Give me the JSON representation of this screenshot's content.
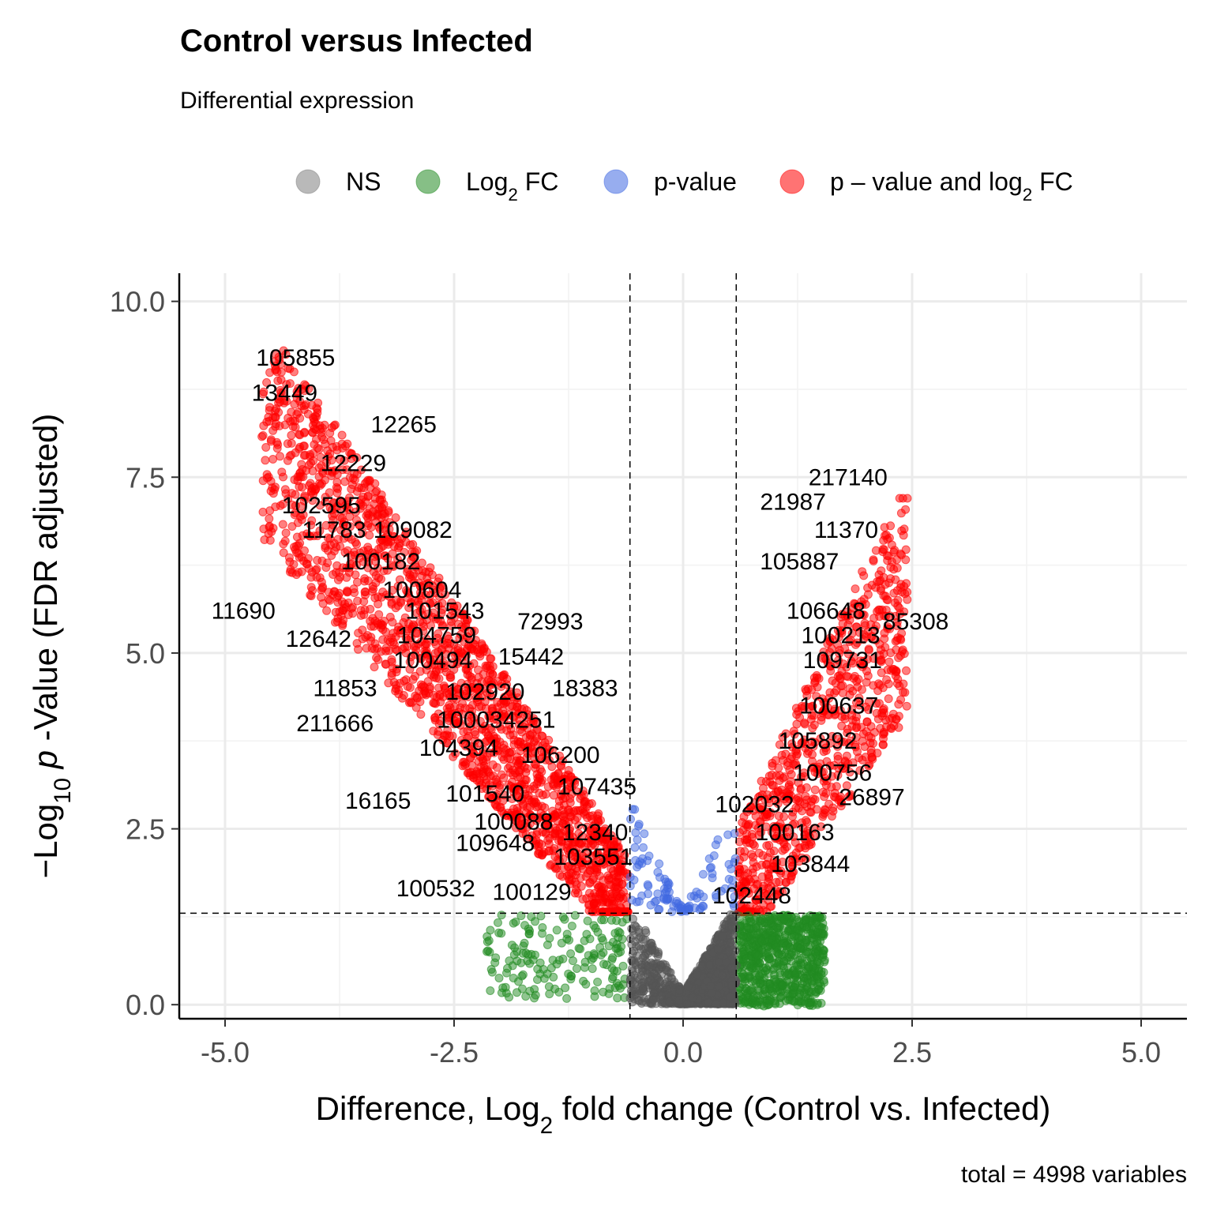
{
  "chart_data": {
    "type": "scatter",
    "title": "Control versus Infected",
    "subtitle": "Differential expression",
    "xlabel_parts": [
      "Difference, Log",
      "2",
      " fold change (Control vs. Infected)"
    ],
    "ylabel_parts": [
      "−Log",
      "10",
      " ",
      "p",
      " -Value (FDR adjusted)"
    ],
    "caption": "total = 4998 variables",
    "xlim": [
      -5.5,
      5.5
    ],
    "ylim": [
      -0.2,
      10.4
    ],
    "x_ticks": [
      -5.0,
      -2.5,
      0.0,
      2.5,
      5.0
    ],
    "x_tick_labels": [
      "-5.0",
      "-2.5",
      "0.0",
      "2.5",
      "5.0"
    ],
    "y_ticks": [
      0.0,
      2.5,
      5.0,
      7.5,
      10.0
    ],
    "y_tick_labels": [
      "0.0",
      "2.5",
      "5.0",
      "7.5",
      "10.0"
    ],
    "grid": true,
    "legend_position": "top",
    "cutoffs": {
      "log2fc": 0.58,
      "neg_log10_p": 1.3
    },
    "legend": [
      {
        "key": "ns",
        "parts": [
          "NS"
        ],
        "color": "#808080"
      },
      {
        "key": "fc",
        "parts": [
          "Log",
          "2",
          " FC"
        ],
        "color": "#228b22"
      },
      {
        "key": "p",
        "parts": [
          "p-value"
        ],
        "color": "#4169e1"
      },
      {
        "key": "both",
        "parts": [
          "p – value and log",
          "2",
          " FC"
        ],
        "color": "#ff0000"
      }
    ],
    "colors": {
      "ns": "#555555",
      "fc": "#228b22",
      "p": "#4169e1",
      "both": "#ff0000"
    },
    "labels": [
      {
        "text": "105855",
        "x": -4.23,
        "y": 9.2
      },
      {
        "text": "13449",
        "x": -4.35,
        "y": 8.7
      },
      {
        "text": "12265",
        "x": -3.05,
        "y": 8.25
      },
      {
        "text": "12229",
        "x": -3.6,
        "y": 7.7
      },
      {
        "text": "217140",
        "x": 1.8,
        "y": 7.5
      },
      {
        "text": "21987",
        "x": 1.2,
        "y": 7.15
      },
      {
        "text": "102595",
        "x": -3.95,
        "y": 7.1
      },
      {
        "text": "11783",
        "x": -3.81,
        "y": 6.75
      },
      {
        "text": "109082",
        "x": -2.95,
        "y": 6.75
      },
      {
        "text": "11370",
        "x": 1.78,
        "y": 6.75
      },
      {
        "text": "100182",
        "x": -3.3,
        "y": 6.3
      },
      {
        "text": "105887",
        "x": 1.27,
        "y": 6.3
      },
      {
        "text": "100604",
        "x": -2.85,
        "y": 5.9
      },
      {
        "text": "11690",
        "x": -4.8,
        "y": 5.6
      },
      {
        "text": "101543",
        "x": -2.6,
        "y": 5.6
      },
      {
        "text": "106648",
        "x": 1.56,
        "y": 5.6
      },
      {
        "text": "72993",
        "x": -1.45,
        "y": 5.45
      },
      {
        "text": "85308",
        "x": 2.54,
        "y": 5.45
      },
      {
        "text": "12642",
        "x": -3.98,
        "y": 5.2
      },
      {
        "text": "104759",
        "x": -2.69,
        "y": 5.25
      },
      {
        "text": "100213",
        "x": 1.72,
        "y": 5.25
      },
      {
        "text": "15442",
        "x": -1.66,
        "y": 4.95
      },
      {
        "text": "100494",
        "x": -2.73,
        "y": 4.9
      },
      {
        "text": "109731",
        "x": 1.74,
        "y": 4.9
      },
      {
        "text": "11853",
        "x": -3.69,
        "y": 4.5
      },
      {
        "text": "102920",
        "x": -2.16,
        "y": 4.45
      },
      {
        "text": "18383",
        "x": -1.07,
        "y": 4.5
      },
      {
        "text": "100637",
        "x": 1.7,
        "y": 4.25
      },
      {
        "text": "211666",
        "x": -3.8,
        "y": 4.0
      },
      {
        "text": "100034251",
        "x": -2.04,
        "y": 4.05
      },
      {
        "text": "105892",
        "x": 1.47,
        "y": 3.75
      },
      {
        "text": "104394",
        "x": -2.45,
        "y": 3.65
      },
      {
        "text": "106200",
        "x": -1.34,
        "y": 3.55
      },
      {
        "text": "100756",
        "x": 1.63,
        "y": 3.3
      },
      {
        "text": "107435",
        "x": -0.94,
        "y": 3.1
      },
      {
        "text": "101540",
        "x": -2.16,
        "y": 3.0
      },
      {
        "text": "26897",
        "x": 2.06,
        "y": 2.95
      },
      {
        "text": "16165",
        "x": -3.33,
        "y": 2.9
      },
      {
        "text": "102032",
        "x": 0.78,
        "y": 2.85
      },
      {
        "text": "100088",
        "x": -1.85,
        "y": 2.6
      },
      {
        "text": "12340",
        "x": -0.96,
        "y": 2.45
      },
      {
        "text": "100163",
        "x": 1.22,
        "y": 2.45
      },
      {
        "text": "109648",
        "x": -2.05,
        "y": 2.3
      },
      {
        "text": "103551",
        "x": -0.98,
        "y": 2.1
      },
      {
        "text": "103844",
        "x": 1.39,
        "y": 2.0
      },
      {
        "text": "100532",
        "x": -2.7,
        "y": 1.65
      },
      {
        "text": "100129",
        "x": -1.65,
        "y": 1.6
      },
      {
        "text": "102448",
        "x": 0.75,
        "y": 1.55
      }
    ],
    "point_groups": [
      {
        "category": "both",
        "count": 1900,
        "xmin": -4.6,
        "xmax": -0.6,
        "yfn": "left"
      },
      {
        "category": "both",
        "count": 800,
        "xmin": 0.6,
        "xmax": 2.45,
        "yfn": "right"
      },
      {
        "category": "p",
        "count": 110,
        "xmin": -0.58,
        "xmax": 0.58,
        "yfn": "center"
      },
      {
        "category": "fc",
        "count": 170,
        "xmin": -2.15,
        "xmax": -0.6,
        "yfn": "lowleft"
      },
      {
        "category": "fc",
        "count": 700,
        "xmin": 0.6,
        "xmax": 1.55,
        "yfn": "lowright"
      },
      {
        "category": "ns",
        "count": 1318,
        "xmin": -0.58,
        "xmax": 0.58,
        "yfn": "ns"
      }
    ]
  }
}
